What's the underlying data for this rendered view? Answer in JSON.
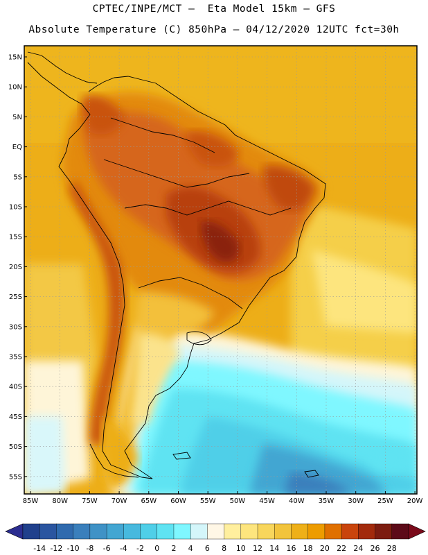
{
  "title_line1": "CPTEC/INPE/MCT –  Eta Model 15km – GFS",
  "title_line2": "Absolute Temperature (C) 850hPa – 04/12/2020 12UTC fct=30h",
  "lat_labels": [
    "15N",
    "10N",
    "5N",
    "EQ",
    "5S",
    "10S",
    "15S",
    "20S",
    "25S",
    "30S",
    "35S",
    "40S",
    "45S",
    "50S",
    "55S"
  ],
  "lon_labels": [
    "85W",
    "80W",
    "75W",
    "70W",
    "65W",
    "60W",
    "55W",
    "50W",
    "45W",
    "40W",
    "35W",
    "30W",
    "25W",
    "20W"
  ],
  "colorbar": {
    "labels": [
      "-14",
      "-12",
      "-10",
      "-8",
      "-6",
      "-4",
      "-2",
      "0",
      "2",
      "4",
      "6",
      "8",
      "10",
      "12",
      "14",
      "16",
      "18",
      "20",
      "22",
      "24",
      "26",
      "28"
    ],
    "colors": [
      "#20408c",
      "#2a55a0",
      "#2f6aae",
      "#3a7fbc",
      "#3f92c6",
      "#43a6d2",
      "#47b9de",
      "#4fcfe8",
      "#5fe3f2",
      "#7ff7ff",
      "#d4f6fa",
      "#fff7e6",
      "#ffef9e",
      "#fde57e",
      "#f8d65c",
      "#f2c43c",
      "#eeb018",
      "#ed9c00",
      "#e07000",
      "#c9440c",
      "#a22a0c",
      "#7c1c10",
      "#5c0a18"
    ],
    "under_color": "#2b2d90",
    "over_color": "#7a0a1a"
  }
}
